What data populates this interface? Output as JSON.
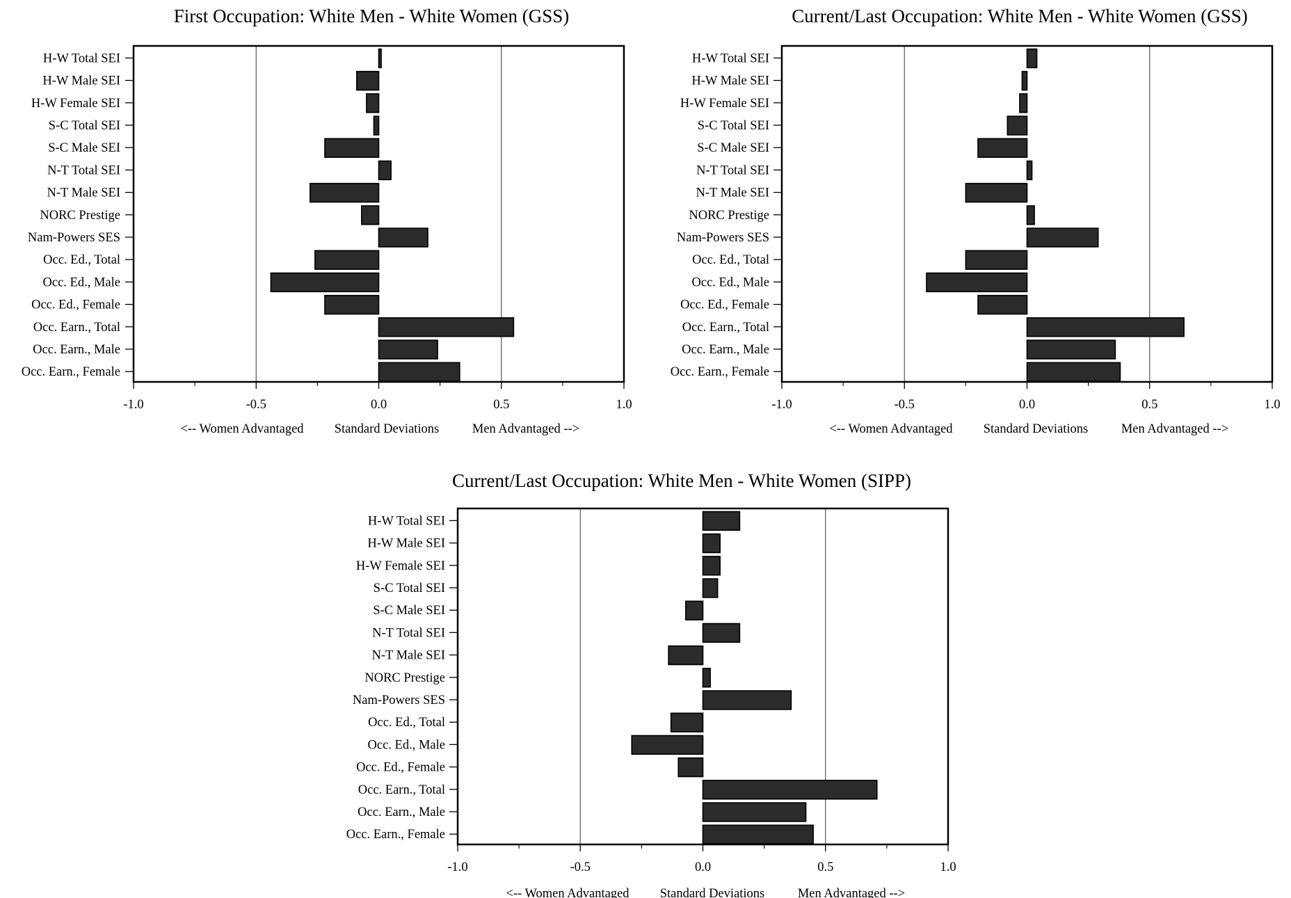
{
  "colors": {
    "bar_fill": "#2b2b2b",
    "bar_stroke": "#000000",
    "frame": "#000000",
    "background": "#ffffff"
  },
  "chart_data": [
    {
      "type": "bar",
      "orientation": "horizontal",
      "title": "First Occupation: White Men - White Women (GSS)",
      "categories": [
        "H-W Total SEI",
        "H-W Male SEI",
        "H-W Female SEI",
        "S-C Total SEI",
        "S-C Male SEI",
        "N-T Total SEI",
        "N-T Male SEI",
        "NORC Prestige",
        "Nam-Powers SES",
        "Occ. Ed., Total",
        "Occ. Ed., Male",
        "Occ. Ed., Female",
        "Occ. Earn., Total",
        "Occ. Earn., Male",
        "Occ. Earn., Female"
      ],
      "values": [
        0.01,
        -0.09,
        -0.05,
        -0.02,
        -0.22,
        0.05,
        -0.28,
        -0.07,
        0.2,
        -0.26,
        -0.44,
        -0.22,
        0.55,
        0.24,
        0.33
      ],
      "xlim": [
        -1.0,
        1.0
      ],
      "xticks": [
        "-1.0",
        "-0.5",
        "0.0",
        "0.5",
        "1.0"
      ],
      "xlabel_parts": [
        "<-- Women Advantaged",
        "Standard Deviations",
        "Men Advantaged -->"
      ],
      "reference_lines": [
        -0.5,
        0.5
      ],
      "grid": false
    },
    {
      "type": "bar",
      "orientation": "horizontal",
      "title": "Current/Last Occupation: White Men - White Women (GSS)",
      "categories": [
        "H-W Total SEI",
        "H-W Male SEI",
        "H-W Female SEI",
        "S-C Total SEI",
        "S-C Male SEI",
        "N-T Total SEI",
        "N-T Male SEI",
        "NORC Prestige",
        "Nam-Powers SES",
        "Occ. Ed., Total",
        "Occ. Ed., Male",
        "Occ. Ed., Female",
        "Occ. Earn., Total",
        "Occ. Earn., Male",
        "Occ. Earn., Female"
      ],
      "values": [
        0.04,
        -0.02,
        -0.03,
        -0.08,
        -0.2,
        0.02,
        -0.25,
        0.03,
        0.29,
        -0.25,
        -0.41,
        -0.2,
        0.64,
        0.36,
        0.38
      ],
      "xlim": [
        -1.0,
        1.0
      ],
      "xticks": [
        "-1.0",
        "-0.5",
        "0.0",
        "0.5",
        "1.0"
      ],
      "xlabel_parts": [
        "<-- Women Advantaged",
        "Standard Deviations",
        "Men Advantaged -->"
      ],
      "reference_lines": [
        -0.5,
        0.5
      ],
      "grid": false
    },
    {
      "type": "bar",
      "orientation": "horizontal",
      "title": "Current/Last Occupation: White Men - White Women (SIPP)",
      "categories": [
        "H-W Total SEI",
        "H-W Male SEI",
        "H-W Female SEI",
        "S-C Total SEI",
        "S-C Male SEI",
        "N-T Total SEI",
        "N-T Male SEI",
        "NORC Prestige",
        "Nam-Powers SES",
        "Occ. Ed., Total",
        "Occ. Ed., Male",
        "Occ. Ed., Female",
        "Occ. Earn., Total",
        "Occ. Earn., Male",
        "Occ. Earn., Female"
      ],
      "values": [
        0.15,
        0.07,
        0.07,
        0.06,
        -0.07,
        0.15,
        -0.14,
        0.03,
        0.36,
        -0.13,
        -0.29,
        -0.1,
        0.71,
        0.42,
        0.45
      ],
      "xlim": [
        -1.0,
        1.0
      ],
      "xticks": [
        "-1.0",
        "-0.5",
        "0.0",
        "0.5",
        "1.0"
      ],
      "xlabel_parts": [
        "<-- Women Advantaged",
        "Standard Deviations",
        "Men Advantaged -->"
      ],
      "reference_lines": [
        -0.5,
        0.5
      ],
      "grid": false
    }
  ]
}
